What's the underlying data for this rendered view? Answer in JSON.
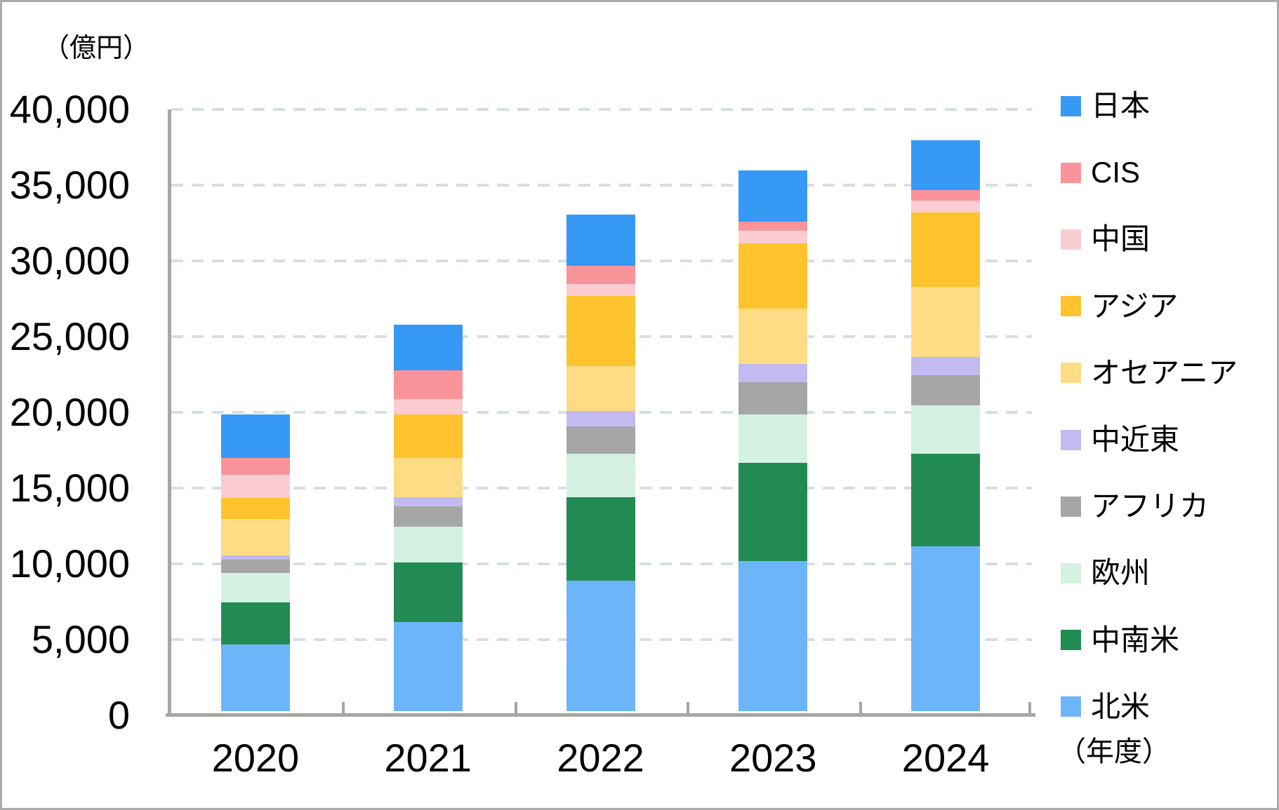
{
  "chart_data": {
    "type": "bar",
    "stacked": true,
    "title": "",
    "ylabel": "（億円）",
    "xlabel": "（年度）",
    "categories": [
      "2020",
      "2021",
      "2022",
      "2023",
      "2024"
    ],
    "ylim": [
      0,
      40000
    ],
    "ytick_interval": 5000,
    "ytick_labels": [
      "0",
      "5,000",
      "10,000",
      "15,000",
      "20,000",
      "25,000",
      "30,000",
      "35,000",
      "40,000"
    ],
    "grid": "horizontal-dashed",
    "legend_position": "right",
    "stack_order": "series listed top-to-bottom as in legend; stacked bottom-to-top in reverse order (北米 bottom, 日本 top)",
    "series": [
      {
        "name": "日本",
        "key": "japan",
        "color": "#3599F5",
        "values": [
          2900,
          3000,
          3400,
          3400,
          3300
        ]
      },
      {
        "name": "CIS",
        "key": "cis",
        "color": "#FB939A",
        "values": [
          1100,
          1900,
          1200,
          600,
          700
        ]
      },
      {
        "name": "中国",
        "key": "china",
        "color": "#FBCDD2",
        "values": [
          1500,
          1000,
          800,
          800,
          800
        ]
      },
      {
        "name": "アジア",
        "key": "asia",
        "color": "#FEC32D",
        "values": [
          1400,
          2900,
          4600,
          4300,
          4900
        ]
      },
      {
        "name": "オセアニア",
        "key": "oceania",
        "color": "#FDDC85",
        "values": [
          2400,
          2600,
          3000,
          3700,
          4600
        ]
      },
      {
        "name": "中近東",
        "key": "middle-east",
        "color": "#C1BBF1",
        "values": [
          300,
          600,
          1000,
          1200,
          1200
        ]
      },
      {
        "name": "アフリカ",
        "key": "africa",
        "color": "#A6A6A6",
        "values": [
          900,
          1300,
          1800,
          2100,
          2000
        ]
      },
      {
        "name": "欧州",
        "key": "europe",
        "color": "#D5F1E1",
        "values": [
          1900,
          2400,
          2900,
          3200,
          3200
        ]
      },
      {
        "name": "中南米",
        "key": "latin-america",
        "color": "#228B53",
        "values": [
          2800,
          3900,
          5500,
          6500,
          6100
        ]
      },
      {
        "name": "北米",
        "key": "north-america",
        "color": "#6DB5FA",
        "values": [
          4400,
          5900,
          8600,
          9900,
          10900
        ]
      }
    ]
  },
  "style": {
    "axis_color": "#A6A6A6",
    "gridline_color": "#D7DDE7",
    "border_color": "#ABABAB",
    "text_color": "#000000",
    "background_color": "#FFFFFF"
  }
}
